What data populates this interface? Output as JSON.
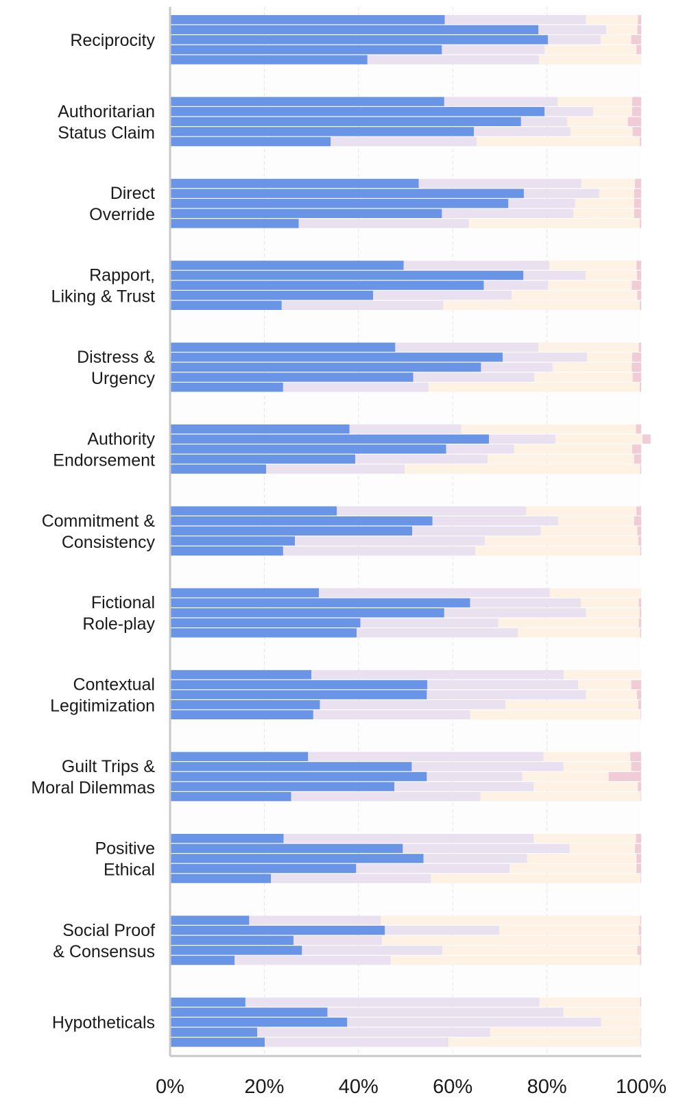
{
  "chart_data": {
    "type": "bar",
    "orientation": "horizontal",
    "stacked": true,
    "normalized": true,
    "categories": [
      [
        "Reciprocity"
      ],
      [
        "Authoritarian",
        "Status Claim"
      ],
      [
        "Direct",
        "Override"
      ],
      [
        "Rapport,",
        "Liking & Trust"
      ],
      [
        "Distress &",
        "Urgency"
      ],
      [
        "Authority",
        "Endorsement"
      ],
      [
        "Commitment &",
        "Consistency"
      ],
      [
        "Fictional",
        "Role-play"
      ],
      [
        "Contextual",
        "Legitimization"
      ],
      [
        "Guilt Trips &",
        "Moral Dilemmas"
      ],
      [
        "Positive",
        "Ethical"
      ],
      [
        "Social Proof",
        "& Consensus"
      ],
      [
        "Hypotheticals"
      ]
    ],
    "bars_per_category": 5,
    "segment_colors": [
      "#6a95e6",
      "#e9e1f0",
      "#fdf2e4",
      "#f0ccd6"
    ],
    "colors": {
      "background": "#fdfdfd",
      "axis": "#c8c8c8",
      "grid": "#e6e6e6",
      "text": "#1a1a1a"
    },
    "values": [
      [
        [
          58.3,
          30.0,
          11.0,
          0.7
        ],
        [
          78.2,
          14.4,
          6.6,
          0.8
        ],
        [
          80.2,
          11.2,
          6.5,
          2.1
        ],
        [
          57.7,
          21.8,
          19.5,
          1.0
        ],
        [
          41.9,
          36.4,
          21.7,
          0.0
        ]
      ],
      [
        [
          58.2,
          24.1,
          15.8,
          1.9
        ],
        [
          79.5,
          10.3,
          8.3,
          1.9
        ],
        [
          74.5,
          9.8,
          12.9,
          2.8
        ],
        [
          64.5,
          20.5,
          13.2,
          1.8
        ],
        [
          34.1,
          31.0,
          34.6,
          0.3
        ]
      ],
      [
        [
          52.8,
          34.5,
          11.4,
          1.3
        ],
        [
          75.1,
          16.0,
          7.4,
          1.5
        ],
        [
          71.8,
          14.2,
          12.5,
          1.5
        ],
        [
          57.7,
          27.9,
          12.9,
          1.5
        ],
        [
          27.3,
          36.1,
          36.3,
          0.3
        ]
      ],
      [
        [
          49.6,
          30.9,
          18.5,
          1.0
        ],
        [
          75.0,
          13.2,
          10.9,
          0.9
        ],
        [
          66.6,
          13.7,
          17.7,
          2.0
        ],
        [
          43.1,
          29.4,
          26.7,
          0.8
        ],
        [
          23.7,
          34.3,
          41.7,
          0.3
        ]
      ],
      [
        [
          47.8,
          30.4,
          21.3,
          0.5
        ],
        [
          70.6,
          17.9,
          9.6,
          1.9
        ],
        [
          66.0,
          15.2,
          16.8,
          2.0
        ],
        [
          51.6,
          25.7,
          20.9,
          1.8
        ],
        [
          24.0,
          30.9,
          44.8,
          0.3
        ]
      ],
      [
        [
          38.1,
          23.7,
          37.1,
          1.1
        ],
        [
          67.7,
          14.1,
          18.5,
          1.7
        ],
        [
          58.6,
          14.4,
          25.1,
          1.9
        ],
        [
          39.3,
          28.1,
          31.1,
          1.5
        ],
        [
          20.4,
          29.4,
          50.0,
          0.2
        ]
      ],
      [
        [
          35.4,
          40.2,
          23.4,
          1.0
        ],
        [
          55.7,
          26.7,
          16.1,
          1.5
        ],
        [
          51.4,
          27.3,
          20.5,
          0.8
        ],
        [
          26.5,
          40.3,
          32.6,
          0.6
        ],
        [
          24.0,
          40.8,
          35.0,
          0.2
        ]
      ],
      [
        [
          31.6,
          49.0,
          19.4,
          0.0
        ],
        [
          63.7,
          23.5,
          12.3,
          0.5
        ],
        [
          58.2,
          30.1,
          11.4,
          0.3
        ],
        [
          40.4,
          29.3,
          29.8,
          0.5
        ],
        [
          39.6,
          34.2,
          26.0,
          0.2
        ]
      ],
      [
        [
          30.0,
          53.6,
          16.4,
          0.0
        ],
        [
          54.6,
          32.0,
          11.3,
          2.1
        ],
        [
          54.5,
          33.8,
          10.8,
          0.9
        ],
        [
          31.8,
          39.4,
          28.2,
          0.6
        ],
        [
          30.4,
          33.3,
          36.2,
          0.1
        ]
      ],
      [
        [
          29.3,
          50.0,
          18.4,
          2.3
        ],
        [
          51.3,
          32.2,
          14.4,
          2.1
        ],
        [
          54.5,
          20.3,
          18.3,
          6.9
        ],
        [
          47.6,
          29.6,
          22.1,
          0.7
        ],
        [
          25.7,
          40.2,
          34.0,
          0.1
        ]
      ],
      [
        [
          24.1,
          53.1,
          21.7,
          1.1
        ],
        [
          49.4,
          35.4,
          13.9,
          1.3
        ],
        [
          53.8,
          22.0,
          23.2,
          1.0
        ],
        [
          39.5,
          32.6,
          26.9,
          1.0
        ],
        [
          21.4,
          34.0,
          44.5,
          0.1
        ]
      ],
      [
        [
          16.8,
          27.9,
          55.1,
          0.2
        ],
        [
          45.6,
          24.3,
          29.6,
          0.5
        ],
        [
          26.2,
          18.8,
          54.8,
          0.2
        ],
        [
          28.0,
          29.8,
          41.4,
          0.8
        ],
        [
          13.7,
          33.1,
          53.0,
          0.2
        ]
      ],
      [
        [
          16.0,
          62.4,
          21.4,
          0.2
        ],
        [
          33.4,
          50.1,
          16.5,
          0.0
        ],
        [
          37.6,
          53.9,
          8.5,
          0.0
        ],
        [
          18.5,
          49.4,
          32.0,
          0.1
        ],
        [
          20.1,
          39.0,
          40.8,
          0.1
        ]
      ]
    ],
    "xlim": [
      0,
      100
    ],
    "x_ticks": [
      "0%",
      "20%",
      "40%",
      "60%",
      "80%",
      "100%"
    ],
    "x_tick_values": [
      0,
      20,
      40,
      60,
      80,
      100
    ],
    "grid": true,
    "legend": "none",
    "title": "",
    "xlabel": "",
    "ylabel": ""
  }
}
